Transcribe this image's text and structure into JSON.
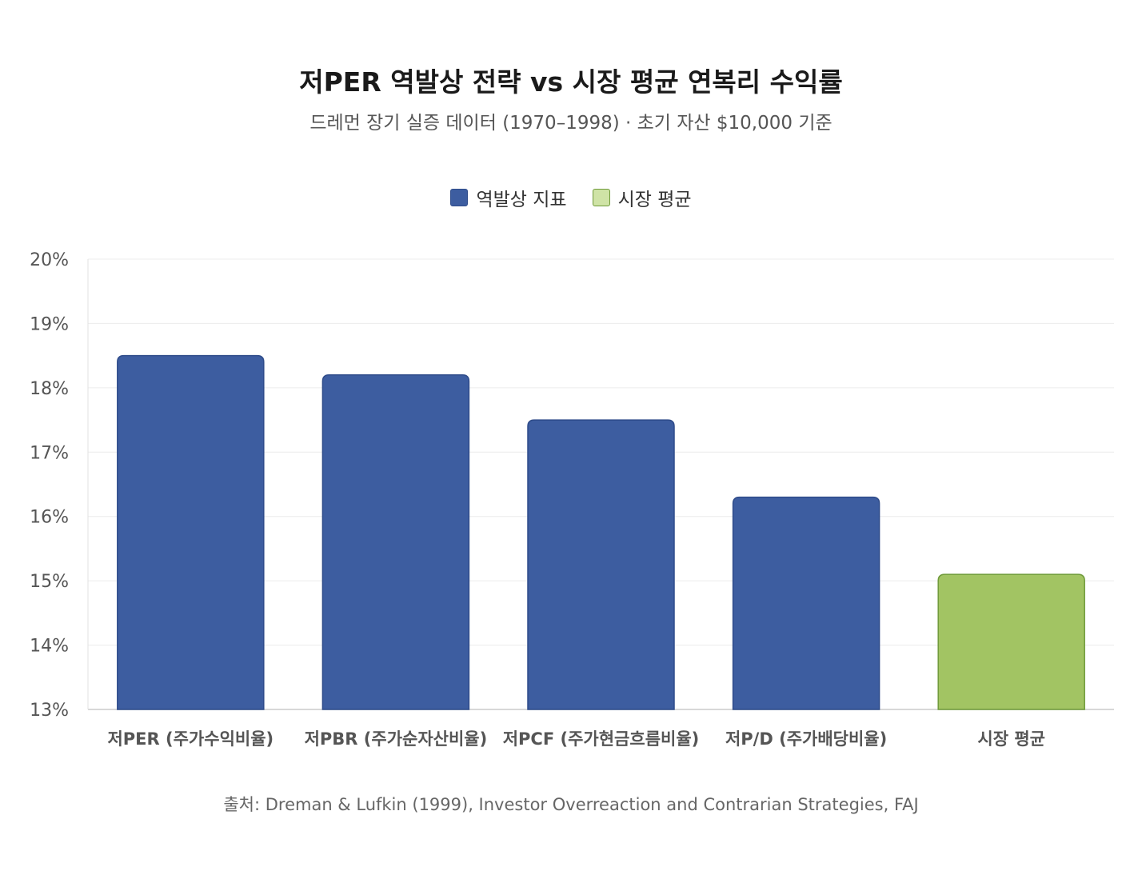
{
  "header": {
    "title": "저PER 역발상 전략 vs 시장 평균 연복리 수익률",
    "subtitle": "드레먼 장기 실증 데이터 (1970–1998) · 초기 자산 $10,000 기준"
  },
  "legend": {
    "items": [
      {
        "label": "역발상 지표",
        "color": "#3d5da0"
      },
      {
        "label": "시장 평균",
        "color": "#a2c463"
      }
    ]
  },
  "chart_data": {
    "type": "bar",
    "categories": [
      "저PER (주가수익비율)",
      "저PBR (주가순자산비율)",
      "저PCF (주가현금흐름비율)",
      "저P/D (주가배당비율)",
      "시장 평균"
    ],
    "values": [
      18.5,
      18.2,
      17.5,
      16.3,
      15.1
    ],
    "colors": [
      "#3d5da0",
      "#3d5da0",
      "#3d5da0",
      "#3d5da0",
      "#a2c463"
    ],
    "ylim": [
      13,
      20
    ],
    "yticks": [
      "13%",
      "14%",
      "15%",
      "16%",
      "17%",
      "18%",
      "19%",
      "20%"
    ],
    "grid": true,
    "legend_position": "top-center"
  },
  "footer": {
    "source": "출처: Dreman & Lufkin (1999), Investor Overreaction and Contrarian Strategies, FAJ"
  }
}
